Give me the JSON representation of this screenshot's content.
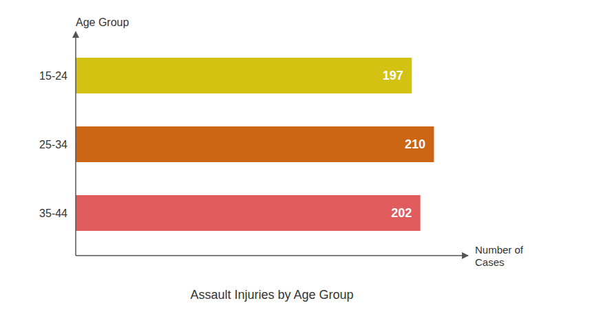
{
  "chart_data": {
    "type": "bar",
    "orientation": "horizontal",
    "title": "Assault Injuries by Age Group",
    "xlabel": "Number of\nCases",
    "ylabel": "Age Group",
    "categories": [
      "15-24",
      "25-34",
      "35-44"
    ],
    "values": [
      197,
      210,
      202
    ],
    "colors": [
      "#D4C213",
      "#CC6614",
      "#E05C5C"
    ],
    "xlim": [
      0,
      230
    ],
    "xticks": [],
    "data_labels": true,
    "tick_labels": "y",
    "grid": false
  }
}
